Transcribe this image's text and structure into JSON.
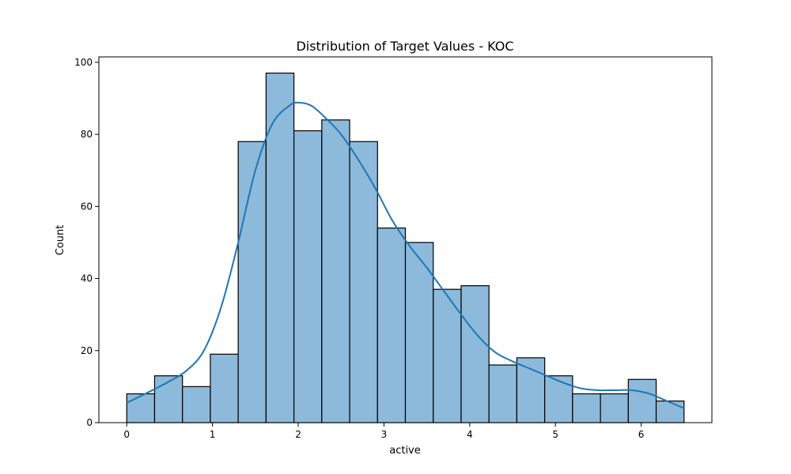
{
  "chart_data": {
    "type": "bar",
    "title": "Distribution of Target Values - KOC",
    "xlabel": "active",
    "ylabel": "Count",
    "xlim": [
      -0.325,
      6.825
    ],
    "ylim": [
      0,
      101.5
    ],
    "xticks": [
      0,
      1,
      2,
      3,
      4,
      5,
      6
    ],
    "yticks": [
      0,
      20,
      40,
      60,
      80,
      100
    ],
    "grid": false,
    "bin_edges": [
      0.0,
      0.325,
      0.65,
      0.975,
      1.3,
      1.625,
      1.95,
      2.275,
      2.6,
      2.925,
      3.25,
      3.575,
      3.9,
      4.225,
      4.55,
      4.875,
      5.2,
      5.525,
      5.85,
      6.175,
      6.5
    ],
    "counts": [
      8,
      13,
      10,
      19,
      78,
      97,
      81,
      84,
      78,
      54,
      50,
      37,
      38,
      16,
      18,
      13,
      8,
      8,
      12,
      6
    ],
    "kde": {
      "x": [
        0.0,
        0.3,
        0.5,
        0.7,
        0.9,
        1.1,
        1.3,
        1.5,
        1.7,
        1.9,
        2.0,
        2.15,
        2.3,
        2.5,
        2.7,
        2.9,
        3.1,
        3.3,
        3.5,
        3.7,
        3.9,
        4.1,
        4.3,
        4.5,
        4.7,
        4.9,
        5.1,
        5.3,
        5.5,
        5.7,
        5.9,
        6.1,
        6.3,
        6.5
      ],
      "y": [
        5.5,
        9,
        11.5,
        14.5,
        20,
        32,
        50,
        70,
        83,
        88,
        88.8,
        88,
        85,
        80,
        73,
        65,
        56,
        49,
        43,
        36.5,
        30,
        24,
        19.5,
        17,
        15,
        13,
        11,
        9.5,
        9,
        9,
        9,
        8,
        6,
        4
      ]
    },
    "colors": {
      "bar_fill": "#8db9db",
      "bar_edge": "#000000",
      "kde_line": "#1f77b4"
    }
  }
}
